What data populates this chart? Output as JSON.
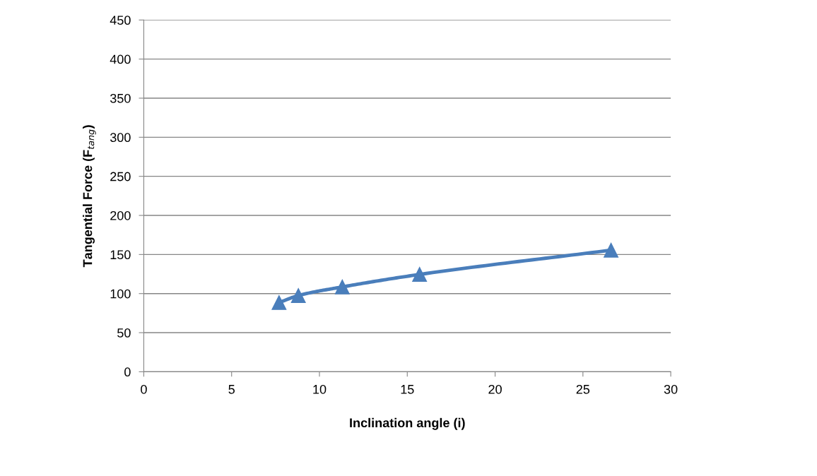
{
  "chart_data": {
    "type": "line",
    "xlabel": "Inclination angle (i)",
    "ylabel": "Tangential Force (F$_{tang}$)",
    "series": [
      {
        "color": "#4a7ebb",
        "x": [
          7.7,
          8.8,
          11.3,
          15.7,
          26.6
        ],
        "values": [
          88.5,
          97.5,
          108.5,
          124.5,
          155.5
        ]
      }
    ],
    "xlim": [
      0,
      30
    ],
    "xticks": [
      0,
      5,
      10,
      15,
      20,
      25,
      30
    ],
    "ylim": [
      0,
      450
    ],
    "yticks": [
      0,
      50,
      100,
      150,
      200,
      250,
      300,
      350,
      400,
      450
    ],
    "grid": "y",
    "marker": "triangle",
    "line_style": "solid"
  }
}
